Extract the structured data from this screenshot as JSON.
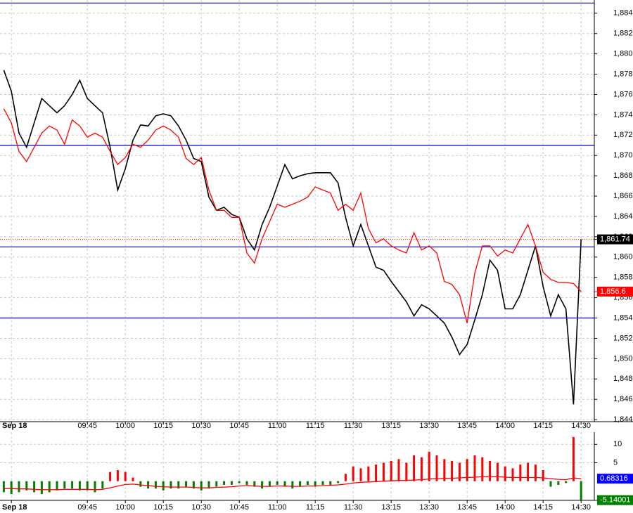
{
  "chart_data": [
    {
      "type": "line",
      "categories": [
        null,
        "Sep 18",
        null,
        null,
        null,
        null,
        null,
        null,
        null,
        null,
        null,
        "09:45",
        null,
        null,
        null,
        null,
        "10:00",
        null,
        null,
        null,
        null,
        "10:15",
        null,
        null,
        null,
        null,
        "10:30",
        null,
        null,
        null,
        null,
        "10:45",
        null,
        null,
        null,
        null,
        "11:00",
        null,
        null,
        null,
        null,
        "11:15",
        null,
        null,
        null,
        null,
        "11:30",
        null,
        null,
        null,
        null,
        "13:15",
        null,
        null,
        null,
        null,
        "13:30",
        null,
        null,
        null,
        null,
        "13:45",
        null,
        null,
        null,
        null,
        "14:00",
        null,
        null,
        null,
        null,
        "14:15",
        null,
        null,
        null,
        null,
        "14:30"
      ],
      "series": [
        {
          "color": "#000000",
          "values": [
            1878.4,
            1876.3,
            1872.2,
            1870.8,
            1873.2,
            1875.6,
            1874.9,
            1874.2,
            1874.9,
            1876.0,
            1877.4,
            1875.6,
            1874.9,
            1874.2,
            1870.8,
            1866.6,
            1868.7,
            1871.5,
            1873.0,
            1872.9,
            1873.9,
            1874.1,
            1873.9,
            1872.9,
            1871.5,
            1869.7,
            1869.4,
            1865.9,
            1864.6,
            1864.9,
            1864.2,
            1863.9,
            1861.8,
            1860.7,
            1863.2,
            1864.9,
            1867.0,
            1869.1,
            1867.7,
            1868.0,
            1868.2,
            1868.3,
            1868.3,
            1868.3,
            1867.3,
            1863.9,
            1861.1,
            1863.2,
            1861.1,
            1859.0,
            1858.7,
            1857.6,
            1856.6,
            1855.6,
            1854.2,
            1855.3,
            1854.9,
            1854.2,
            1853.5,
            1852.1,
            1850.4,
            1851.4,
            1853.8,
            1856.3,
            1859.7,
            1858.7,
            1854.9,
            1854.9,
            1856.3,
            1858.7,
            1861.1,
            1857.1,
            1854.2,
            1856.3,
            1854.9,
            1845.5,
            1861.74
          ]
        },
        {
          "color": "#ff0000",
          "values": [
            1874.6,
            1873.2,
            1870.4,
            1869.4,
            1870.8,
            1872.2,
            1872.9,
            1872.5,
            1871.1,
            1873.5,
            1872.9,
            1871.8,
            1872.2,
            1871.8,
            1870.4,
            1869.1,
            1869.8,
            1871.1,
            1870.8,
            1871.5,
            1872.5,
            1872.9,
            1872.5,
            1871.8,
            1869.7,
            1869.1,
            1869.8,
            1866.6,
            1864.6,
            1864.6,
            1863.9,
            1863.9,
            1860.4,
            1859.4,
            1861.8,
            1863.5,
            1865.2,
            1864.9,
            1865.2,
            1865.5,
            1865.9,
            1866.9,
            1866.6,
            1866.3,
            1864.6,
            1865.2,
            1864.6,
            1866.3,
            1862.8,
            1861.4,
            1861.8,
            1861.1,
            1860.7,
            1860.4,
            1862.4,
            1860.7,
            1861.1,
            1860.4,
            1857.6,
            1857.3,
            1856.3,
            1853.5,
            1858.4,
            1861.1,
            1861.1,
            1860.1,
            1860.7,
            1860.4,
            1861.8,
            1863.2,
            1861.1,
            1858.5,
            1857.8,
            1857.5,
            1857.5,
            1857.4,
            1856.6
          ]
        }
      ],
      "levels": [
        1885.0,
        1871.0,
        1861.0,
        1854.0
      ],
      "level_color": "#0000cc",
      "last_price": {
        "value": 1861.74,
        "label": "1,861.74"
      },
      "ma_last": {
        "value": 1856.6,
        "label": "1,856.6"
      },
      "ylim": [
        1843.8,
        1885.3
      ],
      "yticks": [
        {
          "value": 1844,
          "label": "1,844"
        },
        {
          "value": 1846,
          "label": "1,846"
        },
        {
          "value": 1848,
          "label": "1,848"
        },
        {
          "value": 1850,
          "label": "1,850"
        },
        {
          "value": 1852,
          "label": "1,852"
        },
        {
          "value": 1854,
          "label": "1,854"
        },
        {
          "value": 1856,
          "label": "1,856"
        },
        {
          "value": 1858,
          "label": "1,858"
        },
        {
          "value": 1860,
          "label": "1,860"
        },
        {
          "value": 1862,
          "label": "1,862"
        },
        {
          "value": 1864,
          "label": "1,864"
        },
        {
          "value": 1866,
          "label": "1,866"
        },
        {
          "value": 1868,
          "label": "1,868"
        },
        {
          "value": 1870,
          "label": "1,870"
        },
        {
          "value": 1872,
          "label": "1,872"
        },
        {
          "value": 1874,
          "label": "1,874"
        },
        {
          "value": 1876,
          "label": "1,876"
        },
        {
          "value": 1878,
          "label": "1,878"
        },
        {
          "value": 1880,
          "label": "1,880"
        },
        {
          "value": 1882,
          "label": "1,882"
        },
        {
          "value": 1884,
          "label": "1,884"
        }
      ],
      "grid": true
    },
    {
      "type": "bar",
      "categories": [
        null,
        "Sep 18",
        null,
        null,
        null,
        null,
        null,
        null,
        null,
        null,
        null,
        "09:45",
        null,
        null,
        null,
        null,
        "10:00",
        null,
        null,
        null,
        null,
        "10:15",
        null,
        null,
        null,
        null,
        "10:30",
        null,
        null,
        null,
        null,
        "10:45",
        null,
        null,
        null,
        null,
        "11:00",
        null,
        null,
        null,
        null,
        "11:15",
        null,
        null,
        null,
        null,
        "11:30",
        null,
        null,
        null,
        null,
        "13:15",
        null,
        null,
        null,
        null,
        "13:30",
        null,
        null,
        null,
        null,
        "13:45",
        null,
        null,
        null,
        null,
        "14:00",
        null,
        null,
        null,
        null,
        "14:15",
        null,
        null,
        null,
        null,
        "14:30"
      ],
      "values": [
        -3,
        -3.5,
        -3,
        -2.5,
        -3,
        -3.5,
        -3,
        -2.5,
        -2,
        -2,
        -2.5,
        -2.5,
        -3,
        -2,
        2.5,
        3,
        2.5,
        1,
        -1.5,
        -2,
        -2,
        -2.5,
        -2,
        -2,
        -1.5,
        -2,
        -2.5,
        -2,
        -1.5,
        -1,
        -1,
        -0.5,
        -1,
        -1.5,
        -2,
        -1.5,
        -1,
        -1.5,
        -2,
        -1.5,
        -1,
        -1.5,
        -1,
        -1,
        -0.5,
        2,
        4,
        3.5,
        4,
        4.5,
        5,
        5.5,
        6,
        5,
        7,
        6.5,
        8,
        7,
        6,
        5.5,
        5,
        6,
        7,
        6.5,
        5.5,
        5,
        4,
        3.5,
        4.5,
        5,
        4.5,
        3,
        -1.5,
        -1,
        -0.5,
        12,
        -5.14001
      ],
      "up_color": "#ff0000",
      "down_color": "#008000",
      "signal": {
        "color": "#ff0000",
        "values": [
          -2,
          -2,
          -2.1,
          -2.1,
          -2.2,
          -2.3,
          -2.3,
          -2.3,
          -2.2,
          -2.2,
          -2.2,
          -2.2,
          -2.3,
          -2.2,
          -1.8,
          -1.3,
          -0.9,
          -0.8,
          -1,
          -1.2,
          -1.4,
          -1.5,
          -1.6,
          -1.6,
          -1.6,
          -1.7,
          -1.8,
          -1.8,
          -1.7,
          -1.6,
          -1.5,
          -1.3,
          -1.2,
          -1.3,
          -1.4,
          -1.4,
          -1.3,
          -1.3,
          -1.4,
          -1.4,
          -1.3,
          -1.3,
          -1.2,
          -1.1,
          -1,
          -0.8,
          -0.5,
          -0.3,
          -0.2,
          -0.1,
          0,
          0.1,
          0.2,
          0.2,
          0.3,
          0.4,
          0.6,
          0.7,
          0.8,
          0.8,
          0.9,
          1,
          1.1,
          1.2,
          1.2,
          1.2,
          1.1,
          1,
          1,
          1,
          1,
          0.9,
          0.7,
          0.5,
          0.4,
          0.9,
          0.68316
        ]
      },
      "ylim": [
        -5.2,
        13.3
      ],
      "yticks": [
        5,
        10
      ],
      "grid": true
    }
  ]
}
